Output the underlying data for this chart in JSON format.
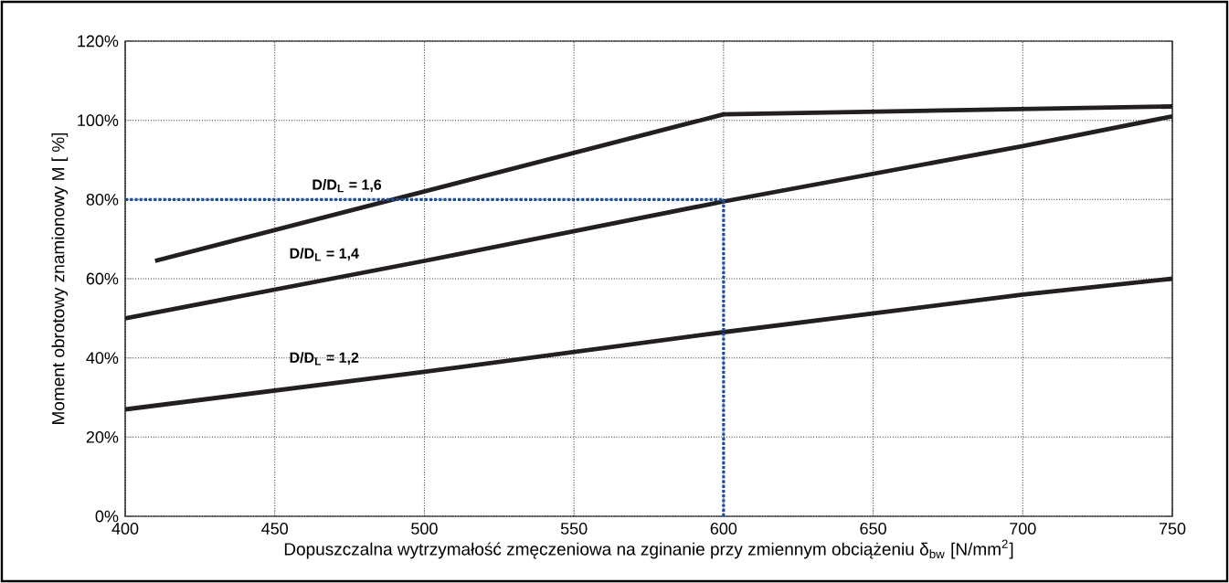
{
  "chart_data": {
    "type": "line",
    "xlabel": "Dopuszczalna wytrzymałość zmęczeniowa na zginanie przy zmiennym obciążeniu δ$_{bw}$ [N/mm$^{2}$]",
    "ylabel": "Moment obrotowy znamionowy M [ %]",
    "xlim": [
      400,
      750
    ],
    "ylim": [
      0,
      120
    ],
    "xticks": [
      400,
      450,
      500,
      550,
      600,
      650,
      700,
      750
    ],
    "yticks": [
      {
        "value": 0,
        "label": "0%"
      },
      {
        "value": 20,
        "label": "20%"
      },
      {
        "value": 40,
        "label": "40%"
      },
      {
        "value": 60,
        "label": "60%"
      },
      {
        "value": 80,
        "label": "80%"
      },
      {
        "value": 100,
        "label": "100%"
      },
      {
        "value": 120,
        "label": "120%"
      }
    ],
    "grid": true,
    "marker": "none",
    "series": [
      {
        "name": "D/D$_{L}$ = 1,6",
        "color": "#231f20",
        "x": [
          410,
          600,
          750
        ],
        "values": [
          64.5,
          101.5,
          103.5
        ]
      },
      {
        "name": "D/D$_{L}$ = 1,4",
        "color": "#231f20",
        "x": [
          400,
          500,
          600,
          700,
          750
        ],
        "values": [
          50,
          64.5,
          79.5,
          93.5,
          101
        ]
      },
      {
        "name": "D/D$_{L}$ = 1,2",
        "color": "#231f20",
        "x": [
          400,
          500,
          600,
          700,
          750
        ],
        "values": [
          27,
          36.5,
          46.5,
          56,
          60
        ]
      },
      {
        "color": "#1f4e9c",
        "line_style": "dotted",
        "x": [
          400,
          600,
          600
        ],
        "values": [
          80,
          80,
          0
        ]
      }
    ]
  }
}
